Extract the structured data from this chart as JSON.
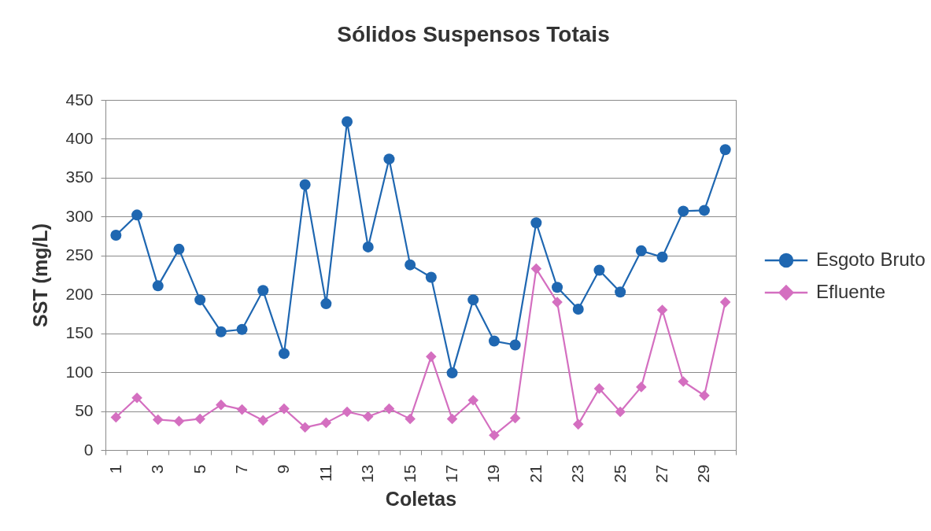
{
  "chart_data": {
    "type": "line",
    "title": "Sólidos Suspensos Totais",
    "xlabel": "Coletas",
    "ylabel": "SST (mg/L)",
    "categories": [
      "1",
      null,
      "3",
      null,
      "5",
      null,
      "7",
      null,
      "9",
      null,
      "11",
      null,
      "13",
      null,
      "15",
      null,
      "17",
      null,
      "19",
      null,
      "21",
      null,
      "23",
      null,
      "25",
      null,
      "27",
      null,
      "29",
      null
    ],
    "series": [
      {
        "name": "Esgoto Bruto",
        "color": "#1f67b1",
        "marker": "circle",
        "values": [
          276,
          302,
          211,
          258,
          193,
          152,
          155,
          205,
          124,
          341,
          188,
          422,
          261,
          374,
          238,
          222,
          99,
          193,
          140,
          135,
          292,
          209,
          181,
          231,
          203,
          256,
          248,
          307,
          308,
          386
        ]
      },
      {
        "name": "Efluente",
        "color": "#d46fc0",
        "marker": "diamond",
        "values": [
          42,
          67,
          39,
          37,
          40,
          58,
          52,
          38,
          53,
          29,
          35,
          49,
          43,
          53,
          40,
          120,
          40,
          64,
          19,
          41,
          233,
          190,
          33,
          79,
          49,
          81,
          180,
          88,
          70,
          190
        ]
      }
    ],
    "ylim": [
      0,
      450
    ],
    "yticks": [
      0,
      50,
      100,
      150,
      200,
      250,
      300,
      350,
      400,
      450
    ],
    "grid": "y",
    "legend": "right"
  }
}
